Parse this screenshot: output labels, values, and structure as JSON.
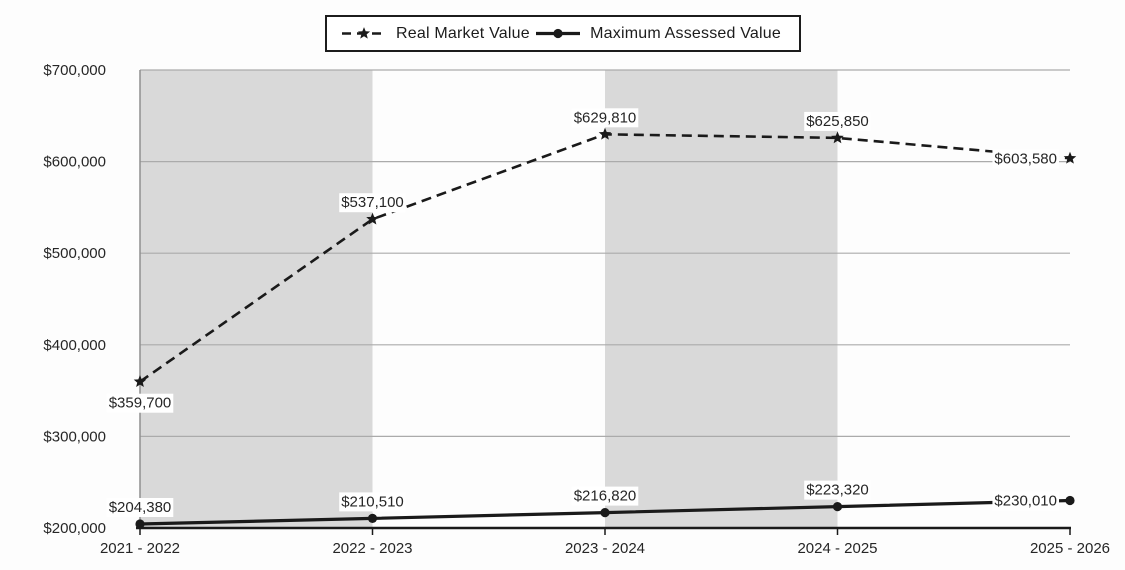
{
  "chart_data": {
    "type": "line",
    "title": "",
    "categories": [
      "2021 - 2022",
      "2022 - 2023",
      "2023 - 2024",
      "2024 - 2025",
      "2025 - 2026"
    ],
    "series": [
      {
        "name": "Real Market Value",
        "values": [
          359700,
          537100,
          629810,
          625850,
          603580
        ],
        "data_labels": [
          "$359,700",
          "$537,100",
          "$629,810",
          "$625,850",
          "$603,580"
        ],
        "label_positions": [
          "below",
          "above",
          "above",
          "above",
          "left"
        ],
        "line_style": "dashed",
        "marker": "star"
      },
      {
        "name": "Maximum Assessed Value",
        "values": [
          204380,
          210510,
          216820,
          223320,
          230010
        ],
        "data_labels": [
          "$204,380",
          "$210,510",
          "$216,820",
          "$223,320",
          "$230,010"
        ],
        "label_positions": [
          "above",
          "above",
          "above",
          "above",
          "left"
        ],
        "line_style": "solid",
        "marker": "circle"
      }
    ],
    "y_axis": {
      "min": 200000,
      "max": 700000,
      "step": 100000,
      "tick_labels": [
        "$200,000",
        "$300,000",
        "$400,000",
        "$500,000",
        "$600,000",
        "$700,000"
      ]
    },
    "x_axis": {
      "tick_labels": [
        "2021 - 2022",
        "2022 - 2023",
        "2023 - 2024",
        "2024 - 2025",
        "2025 - 2026"
      ]
    },
    "shaded_intervals": [
      0,
      2
    ],
    "grid": true,
    "legend_position": "top",
    "colors": {
      "line": "#1a1a1a",
      "band": "#d9d9d9",
      "gridline": "#ababab",
      "y_axis_line": "#8f8f8f",
      "x_axis_line": "#1a1a1a",
      "text": "#262626",
      "label_background": "#ffffff",
      "background": "#ffffff"
    }
  }
}
